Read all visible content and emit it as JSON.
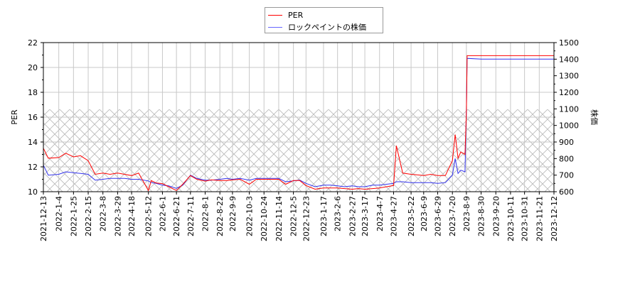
{
  "legend": {
    "items": [
      {
        "label": "PER",
        "color": "#ff0000"
      },
      {
        "label": "ロックペイントの株価",
        "color": "#0000ff"
      }
    ]
  },
  "axes": {
    "left_label": "PER",
    "right_label": "株価",
    "left_ticks": [
      "10",
      "12",
      "14",
      "16",
      "18",
      "20",
      "22"
    ],
    "right_ticks": [
      "600",
      "700",
      "800",
      "900",
      "1000",
      "1100",
      "1200",
      "1300",
      "1400",
      "1500"
    ],
    "x_ticks": [
      "2021-12-13",
      "2022-1-4",
      "2022-1-25",
      "2022-2-15",
      "2022-3-8",
      "2022-3-29",
      "2022-4-18",
      "2022-5-12",
      "2022-6-1",
      "2022-6-21",
      "2022-7-11",
      "2022-8-1",
      "2022-8-22",
      "2022-9-9",
      "2022-10-3",
      "2022-10-24",
      "2022-11-14",
      "2022-12-5",
      "2022-12-23",
      "2023-1-17",
      "2023-2-6",
      "2023-2-27",
      "2023-3-17",
      "2023-4-7",
      "2023-4-27",
      "2023-5-22",
      "2023-6-9",
      "2023-6-29",
      "2023-7-20",
      "2023-8-9",
      "2023-8-30",
      "2023-9-20",
      "2023-10-11",
      "2023-10-31",
      "2023-11-21",
      "2023-12-12"
    ]
  },
  "chart_data": {
    "type": "line",
    "title": "",
    "xlabel": "",
    "ylabel": "PER",
    "y2label": "株価",
    "ylim": [
      10,
      22
    ],
    "y2lim": [
      600,
      1500
    ],
    "grid": true,
    "legend_position": "top center",
    "hatched_band": {
      "axis": "left",
      "from": 10,
      "to": 16.63
    },
    "x": [
      "2021-12-13",
      "2021-12-20",
      "2022-1-4",
      "2022-1-14",
      "2022-1-25",
      "2022-2-4",
      "2022-2-15",
      "2022-2-25",
      "2022-3-8",
      "2022-3-18",
      "2022-3-29",
      "2022-4-8",
      "2022-4-18",
      "2022-4-28",
      "2022-5-12",
      "2022-5-16",
      "2022-5-23",
      "2022-6-1",
      "2022-6-10",
      "2022-6-21",
      "2022-6-30",
      "2022-7-11",
      "2022-7-20",
      "2022-8-1",
      "2022-8-10",
      "2022-8-22",
      "2022-9-1",
      "2022-9-9",
      "2022-9-20",
      "2022-10-3",
      "2022-10-13",
      "2022-10-24",
      "2022-11-2",
      "2022-11-14",
      "2022-11-24",
      "2022-12-5",
      "2022-12-14",
      "2022-12-23",
      "2023-1-5",
      "2023-1-17",
      "2023-1-27",
      "2023-2-6",
      "2023-2-16",
      "2023-2-27",
      "2023-3-8",
      "2023-3-17",
      "2023-3-28",
      "2023-4-7",
      "2023-4-17",
      "2023-4-27",
      "2023-5-1",
      "2023-5-10",
      "2023-5-22",
      "2023-6-1",
      "2023-6-9",
      "2023-6-19",
      "2023-6-29",
      "2023-7-10",
      "2023-7-20",
      "2023-7-24",
      "2023-7-28",
      "2023-8-1",
      "2023-8-7",
      "2023-8-9",
      "2023-8-10",
      "2023-8-30",
      "2023-9-20",
      "2023-10-11",
      "2023-10-31",
      "2023-11-21",
      "2023-12-12"
    ],
    "series": [
      {
        "name": "PER",
        "axis": "left",
        "color": "#ff0000",
        "values": [
          13.5,
          12.7,
          12.75,
          13.1,
          12.8,
          12.9,
          12.5,
          11.4,
          11.5,
          11.4,
          11.5,
          11.4,
          11.3,
          11.5,
          10.1,
          10.9,
          10.7,
          10.65,
          10.4,
          10.1,
          10.6,
          11.3,
          11.0,
          10.85,
          10.95,
          10.9,
          10.9,
          10.95,
          11.0,
          10.6,
          11.0,
          11.0,
          11.0,
          11.0,
          10.6,
          10.9,
          10.9,
          10.5,
          10.2,
          10.3,
          10.3,
          10.3,
          10.25,
          10.2,
          10.25,
          10.2,
          10.25,
          10.3,
          10.4,
          10.5,
          13.7,
          11.5,
          11.4,
          11.35,
          11.3,
          11.4,
          11.3,
          11.3,
          12.5,
          14.6,
          12.7,
          13.2,
          13.0,
          16.5,
          20.95,
          20.95,
          20.95,
          20.95,
          20.95,
          20.95,
          20.95
        ]
      },
      {
        "name": "ロックペイントの株価",
        "axis": "right",
        "color": "#0000ff",
        "values": [
          760,
          700,
          705,
          720,
          715,
          710,
          705,
          670,
          675,
          680,
          680,
          680,
          675,
          675,
          665,
          655,
          650,
          640,
          635,
          620,
          640,
          700,
          680,
          670,
          670,
          675,
          680,
          675,
          680,
          670,
          680,
          680,
          680,
          680,
          660,
          665,
          670,
          650,
          630,
          640,
          640,
          635,
          630,
          635,
          630,
          630,
          640,
          640,
          645,
          650,
          660,
          660,
          655,
          655,
          655,
          655,
          650,
          655,
          700,
          800,
          710,
          730,
          720,
          1100,
          1405,
          1400,
          1400,
          1400,
          1400,
          1400,
          1400
        ]
      }
    ]
  }
}
